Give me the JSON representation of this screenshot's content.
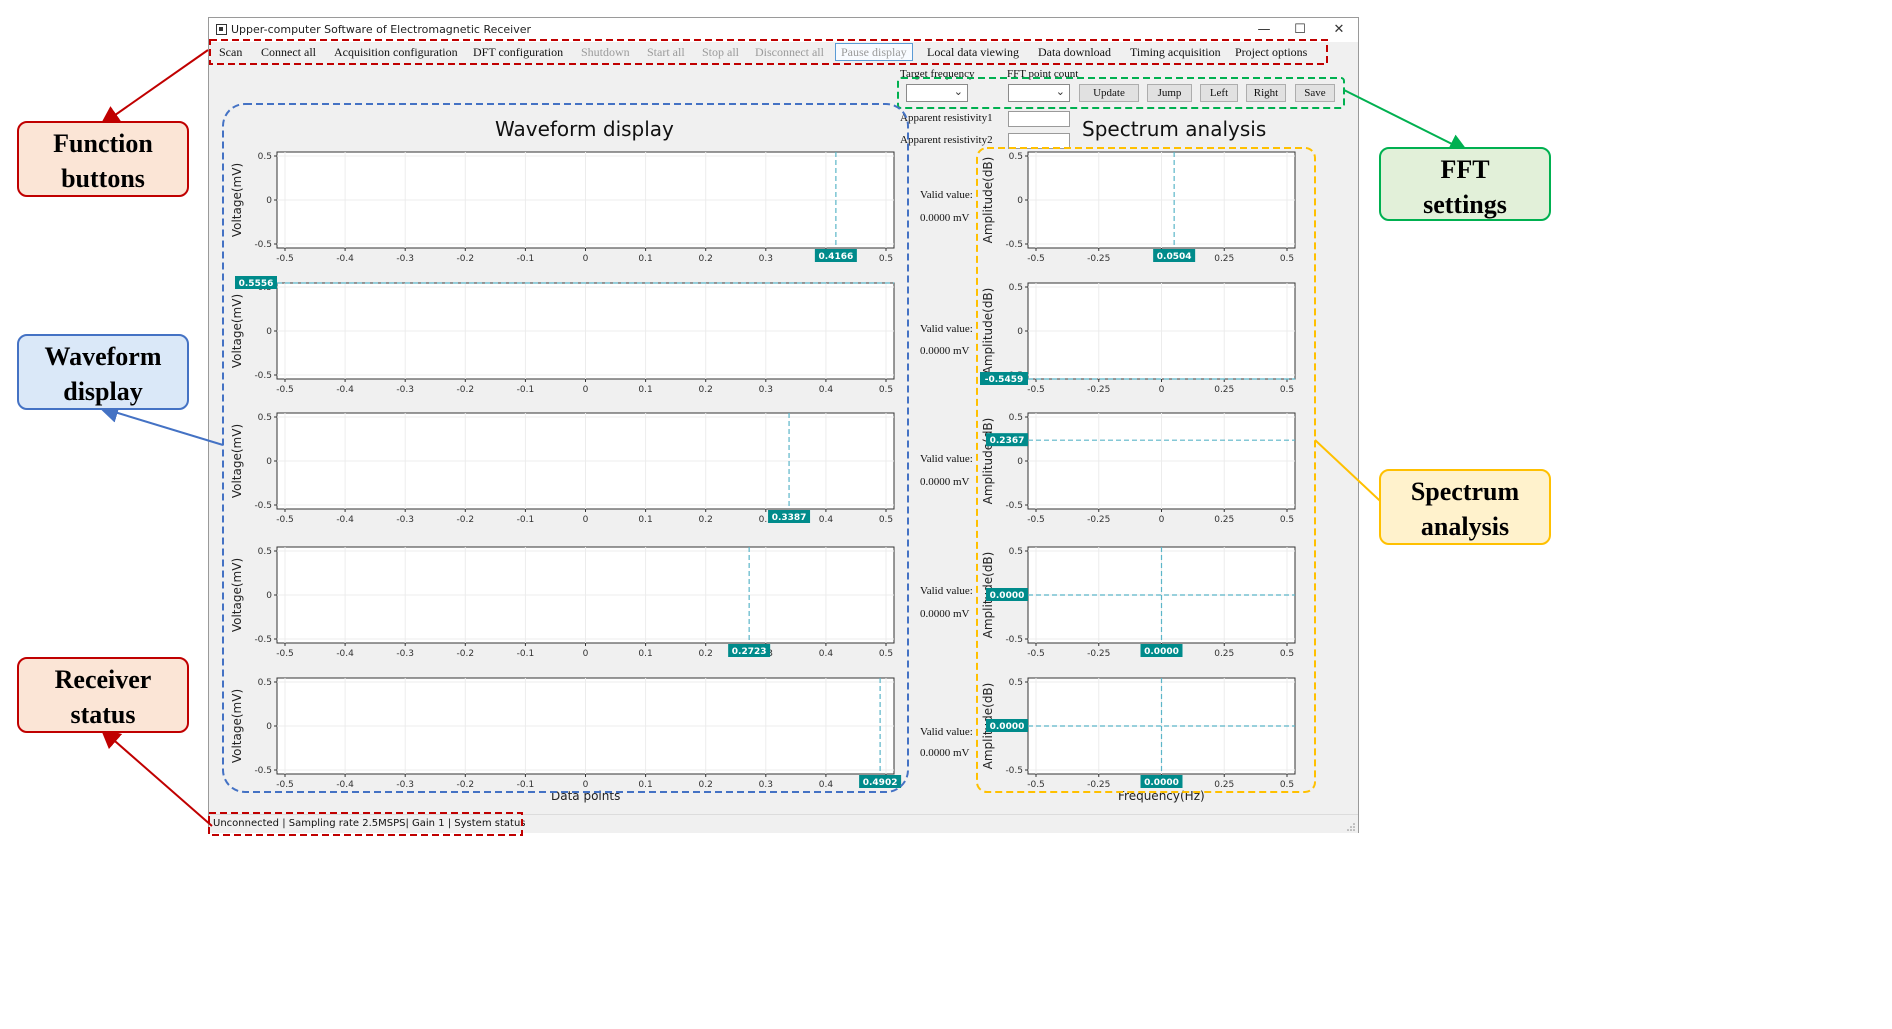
{
  "window": {
    "title": "Upper-computer Software of Electromagnetic Receiver",
    "minimize": "—",
    "maximize": "☐",
    "close": "✕"
  },
  "menu": [
    {
      "label": "Scan",
      "enabled": true
    },
    {
      "label": "Connect all",
      "enabled": true
    },
    {
      "label": "Acquisition configuration",
      "enabled": true
    },
    {
      "label": "DFT configuration",
      "enabled": true
    },
    {
      "label": "Shutdown",
      "enabled": false
    },
    {
      "label": "Start all",
      "enabled": false
    },
    {
      "label": "Stop all",
      "enabled": false
    },
    {
      "label": "Disconnect all",
      "enabled": false
    },
    {
      "label": "Pause display",
      "enabled": false
    },
    {
      "label": "Local data viewing",
      "enabled": true
    },
    {
      "label": "Data download",
      "enabled": true
    },
    {
      "label": "Timing acquisition",
      "enabled": true
    },
    {
      "label": "Project options",
      "enabled": true
    }
  ],
  "fft": {
    "target_frequency_label": "Target frequency",
    "fft_point_count_label": "FFT point count",
    "target_frequency_value": "",
    "fft_point_count_value": "",
    "buttons": [
      "Update",
      "Jump",
      "Left",
      "Right",
      "Save"
    ],
    "apparent_resistivity1_label": "Apparent resistivity1",
    "apparent_resistivity2_label": "Apparent resistivity2",
    "apparent_resistivity1_value": "",
    "apparent_resistivity2_value": ""
  },
  "waveform": {
    "title": "Waveform display",
    "xlabel": "Data points",
    "ylabel": "Voltage(mV)"
  },
  "spectrum": {
    "title": "Spectrum analysis",
    "xlabel": "Frequency(Hz)",
    "ylabel": "Amplitude(dB)"
  },
  "channels": [
    {
      "valid_label": "Valid value:",
      "valid_value": "0.0000 mV"
    },
    {
      "valid_label": "Valid value:",
      "valid_value": "0.0000 mV"
    },
    {
      "valid_label": "Valid value:",
      "valid_value": "0.0000 mV"
    },
    {
      "valid_label": "Valid value:",
      "valid_value": "0.0000 mV"
    },
    {
      "valid_label": "Valid value:",
      "valid_value": "0.0000 mV"
    }
  ],
  "status": {
    "text": "Unconnected  | Sampling rate 2.5MSPS| Gain 1 |  System status"
  },
  "callouts": {
    "function_buttons": [
      "Function",
      "buttons"
    ],
    "waveform_display": [
      "Waveform",
      "display"
    ],
    "receiver_status": [
      "Receiver",
      "status"
    ],
    "fft_settings": [
      "FFT",
      "settings"
    ],
    "spectrum_analysis": [
      "Spectrum",
      "analysis"
    ]
  },
  "colors": {
    "function_red": "#c00000",
    "waveform_blue": "#4472c4",
    "fft_green": "#00b050",
    "spectrum_yellow": "#ffc000",
    "marker_teal": "#008b8b",
    "cursor_teal": "#5bb5c8"
  },
  "chart_data": [
    {
      "type": "line",
      "group": "waveform",
      "xlim": [
        -0.5,
        0.5
      ],
      "ylim": [
        -0.5,
        0.5
      ],
      "xticks": [
        "-0.5",
        "-0.4",
        "-0.3",
        "-0.2",
        "-0.1",
        "0",
        "0.1",
        "0.2",
        "0.3",
        "0.4",
        "0.5"
      ],
      "yticks": [
        "0.5",
        "0",
        "-0.5"
      ],
      "grid": true,
      "panels": [
        {
          "cursor": "vertical",
          "value": 0.4166,
          "label": "0.4166"
        },
        {
          "cursor": "horizontal",
          "value": 0.5556,
          "label": "0.5556"
        },
        {
          "cursor": "vertical",
          "value": 0.3387,
          "label": "0.3387"
        },
        {
          "cursor": "vertical",
          "value": 0.2723,
          "label": "0.2723"
        },
        {
          "cursor": "vertical",
          "value": 0.4902,
          "label": "0.4902"
        }
      ]
    },
    {
      "type": "line",
      "group": "spectrum",
      "xlim": [
        -0.5,
        0.5
      ],
      "ylim": [
        -0.5,
        0.5
      ],
      "xticks": [
        "-0.5",
        "-0.25",
        "0",
        "0.25",
        "0.5"
      ],
      "yticks": [
        "0.5",
        "0",
        "-0.5"
      ],
      "grid": true,
      "panels": [
        {
          "cursor": "vertical",
          "value": 0.0504,
          "label": "0.0504"
        },
        {
          "cursor": "horizontal",
          "value": -0.5459,
          "label": "-0.5459"
        },
        {
          "cursor": "horizontal",
          "value": 0.2367,
          "label": "0.2367"
        },
        {
          "cursor": "cross",
          "value": 0.0,
          "label": "0.0000",
          "hvalue": 0.0,
          "hlabel": "0.0000"
        },
        {
          "cursor": "cross",
          "value": 0.0,
          "label": "0.0000",
          "hvalue": 0.0,
          "hlabel": "0.0000"
        }
      ]
    }
  ]
}
